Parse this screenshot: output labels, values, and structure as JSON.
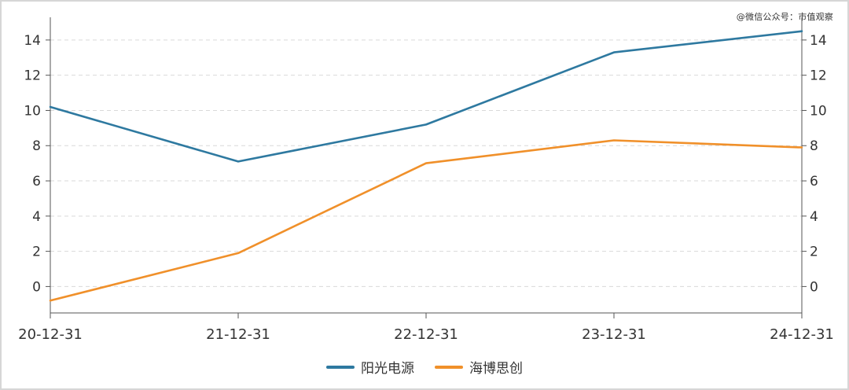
{
  "watermark": "@微信公众号：市值观察",
  "colors": {
    "series_1": "#2e79a0",
    "series_2": "#f0902a",
    "grid": "#d9d9d9",
    "axis": "#555555",
    "text": "#333333"
  },
  "chart_data": {
    "type": "line",
    "categories": [
      "20-12-31",
      "21-12-31",
      "22-12-31",
      "23-12-31",
      "24-12-31"
    ],
    "series": [
      {
        "name": "阳光电源",
        "values": [
          10.2,
          7.1,
          9.2,
          13.3,
          14.5
        ]
      },
      {
        "name": "海博思创",
        "values": [
          -0.8,
          1.9,
          7.0,
          8.3,
          7.9
        ]
      }
    ],
    "y_ticks": [
      0,
      2,
      4,
      6,
      8,
      10,
      12,
      14
    ],
    "ylim": [
      -1.5,
      15.2
    ],
    "grid": "horizontal dashed",
    "dual_y_axis": true,
    "legend_position": "bottom-center"
  }
}
